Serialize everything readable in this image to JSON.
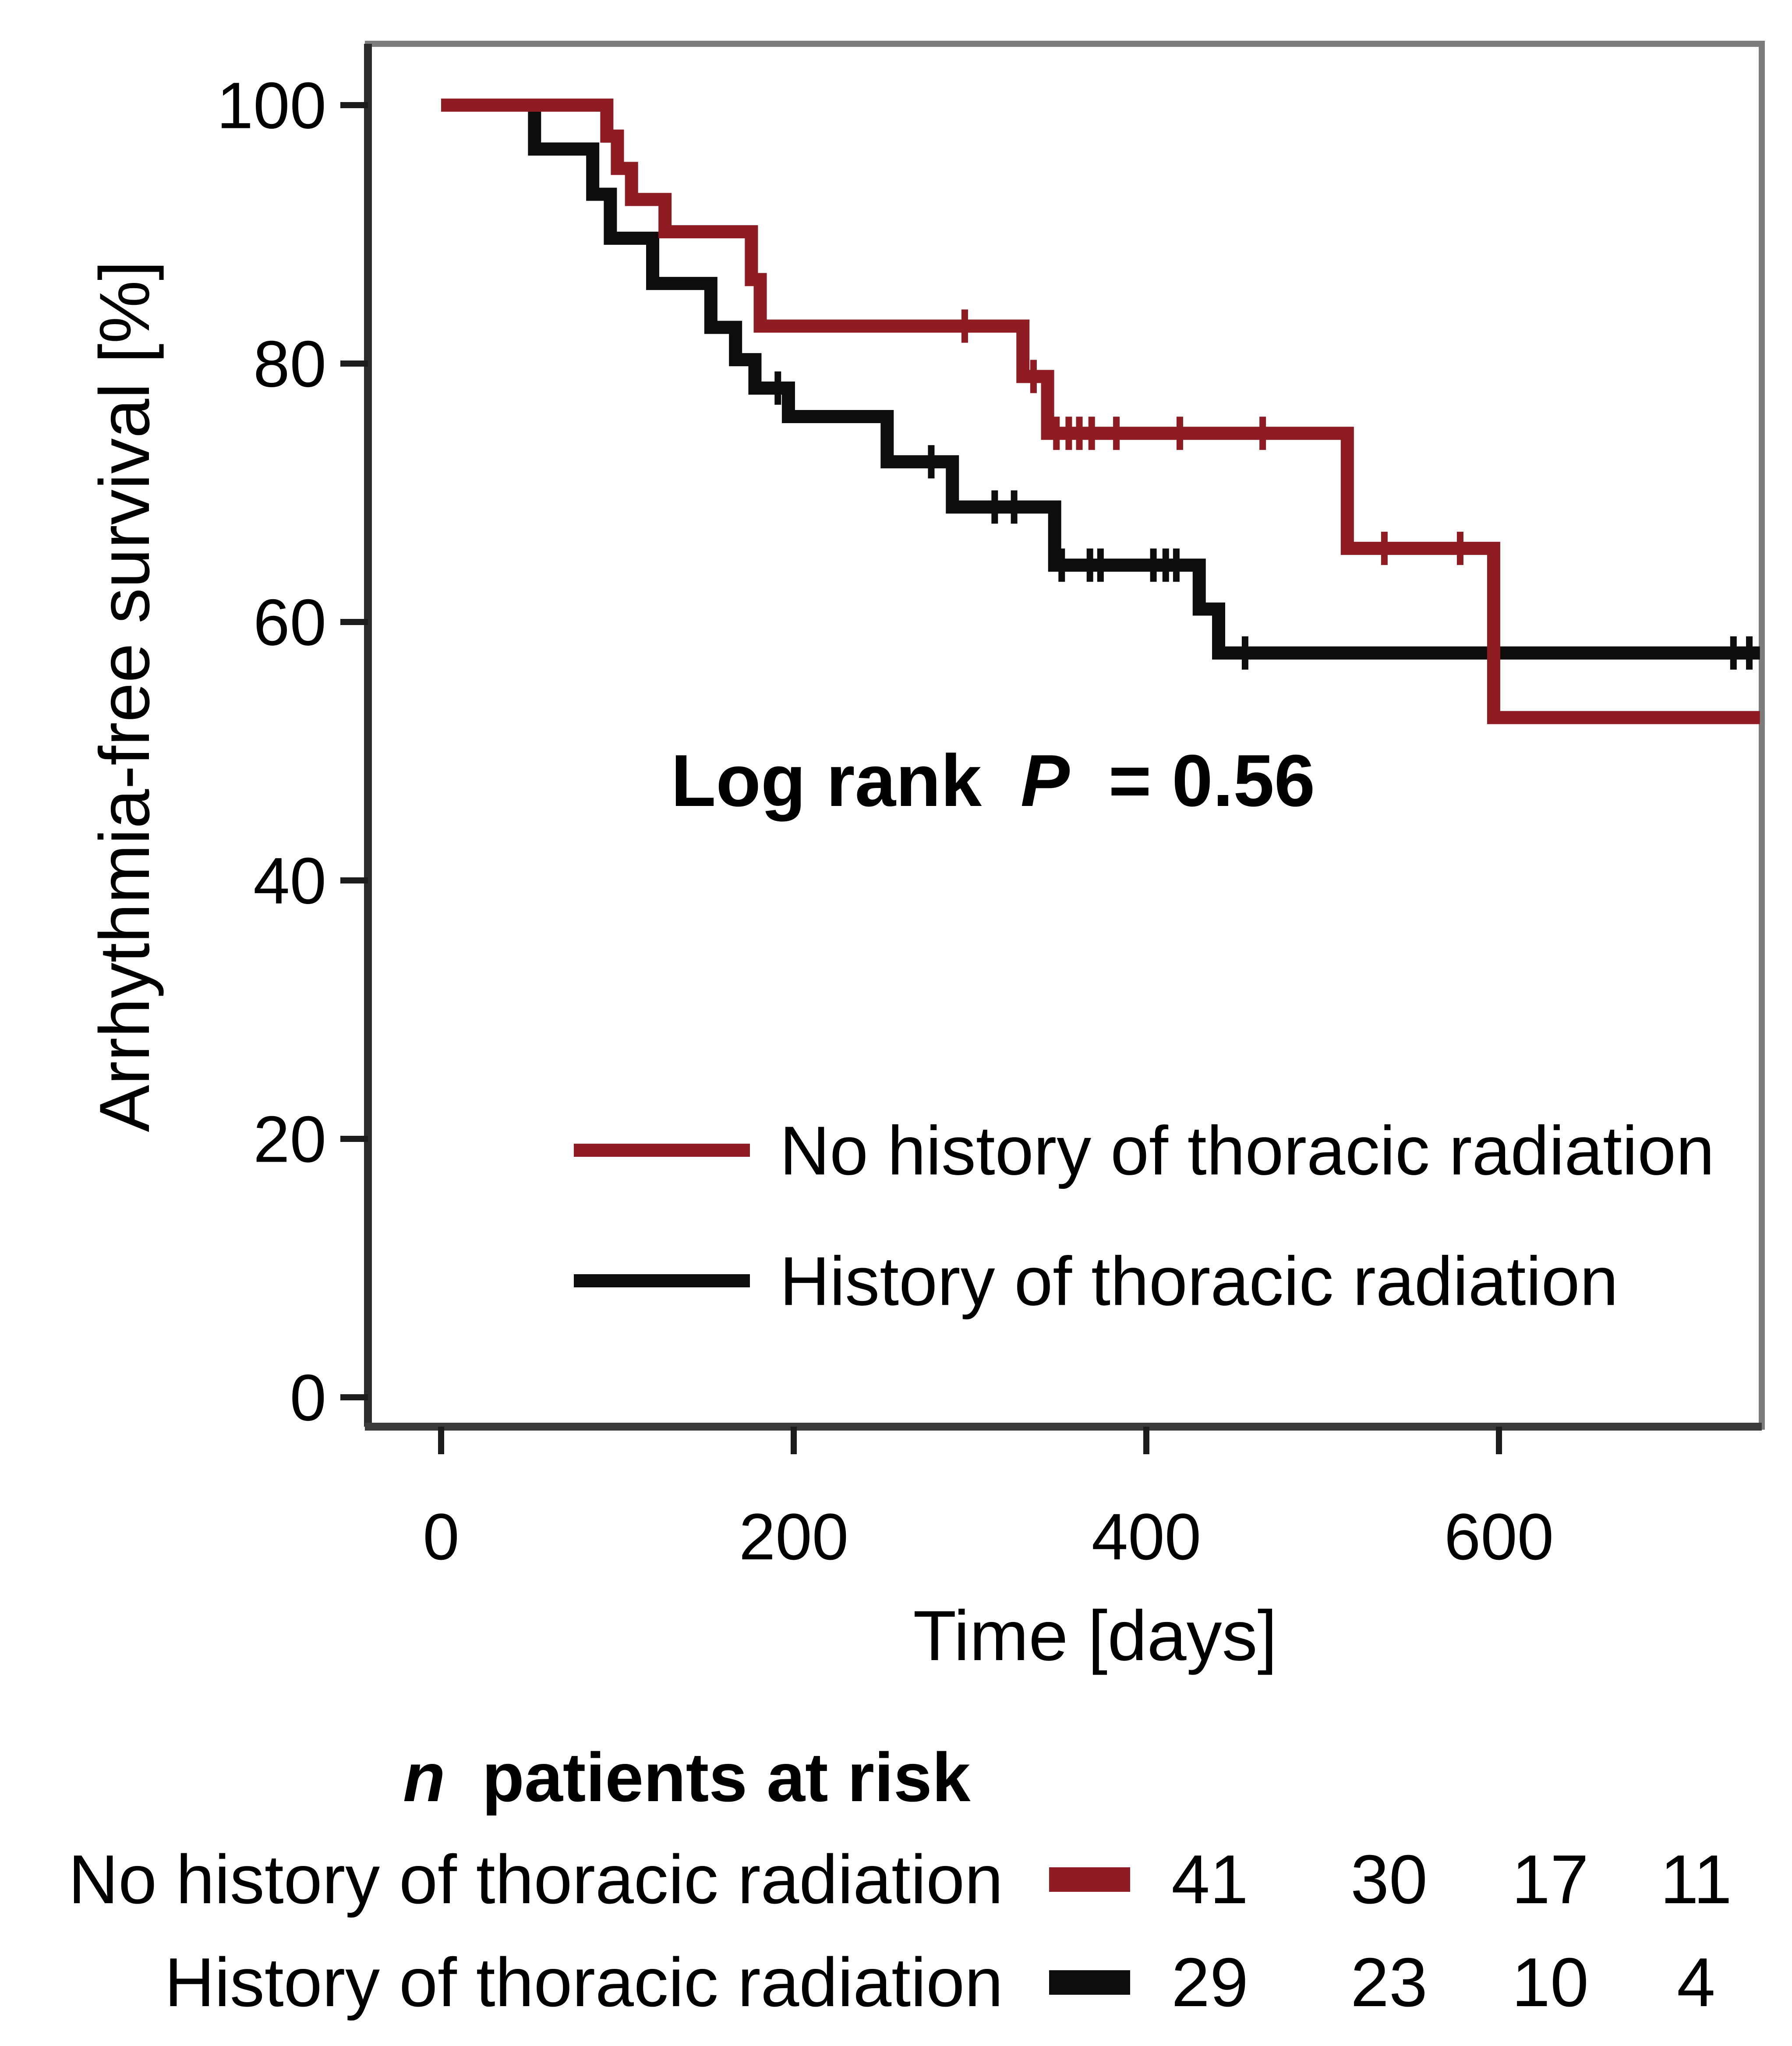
{
  "colors": {
    "series_red": "#8f1b23",
    "series_black": "#0d0d0d",
    "box_border": "#7d7d7d",
    "axis_dark": "#2b2b2b",
    "text": "#000000",
    "background": "#ffffff"
  },
  "y_axis": {
    "label": "Arrhythmia-free survival [%]",
    "tick_labels": [
      "0",
      "20",
      "40",
      "60",
      "80",
      "100"
    ]
  },
  "x_axis": {
    "label": "Time [days]",
    "tick_labels": [
      "0",
      "200",
      "400",
      "600"
    ]
  },
  "annotation": {
    "prefix": "Log rank",
    "stat": "P",
    "suffix": "= 0.56"
  },
  "legend": {
    "items": [
      {
        "label": "No history of thoracic radiation",
        "color": "#8f1b23"
      },
      {
        "label": "History of thoracic radiation",
        "color": "#0d0d0d"
      }
    ]
  },
  "at_risk": {
    "title_italic": "n",
    "title_rest": "patients at risk",
    "rows": [
      {
        "label": "No history of thoracic radiation",
        "color": "#8f1b23",
        "counts": [
          "41",
          "30",
          "17",
          "11"
        ]
      },
      {
        "label": "History of thoracic radiation",
        "color": "#0d0d0d",
        "counts": [
          "29",
          "23",
          "10",
          "4"
        ]
      }
    ]
  },
  "chart_data": {
    "type": "line",
    "subtype": "kaplan-meier-step-curves",
    "title": "Log rank P = 0.56",
    "xlabel": "Time [days]",
    "ylabel": "Arrhythmia-free survival [%]",
    "x_ticks": [
      0,
      200,
      400,
      600
    ],
    "y_ticks": [
      0,
      20,
      40,
      60,
      80,
      100
    ],
    "xlim": [
      -42,
      748
    ],
    "ylim": [
      -2.3,
      104.7
    ],
    "grid": false,
    "legend_position": "inside-lower-left",
    "series": [
      {
        "name": "No history of thoracic radiation",
        "color": "#8f1b23",
        "steps": [
          [
            0,
            100
          ],
          [
            94,
            97.6
          ],
          [
            100,
            95.1
          ],
          [
            108,
            92.7
          ],
          [
            127,
            90.2
          ],
          [
            176,
            86.5
          ],
          [
            181,
            82.9
          ],
          [
            330,
            79.0
          ],
          [
            344,
            74.6
          ],
          [
            514,
            65.7
          ],
          [
            597,
            52.6
          ]
        ],
        "end_time": 748,
        "censor_marks": [
          [
            297,
            82.9
          ],
          [
            336,
            79.0
          ],
          [
            349,
            74.6
          ],
          [
            356,
            74.6
          ],
          [
            362,
            74.6
          ],
          [
            369,
            74.6
          ],
          [
            383,
            74.6
          ],
          [
            419,
            74.6
          ],
          [
            466,
            74.6
          ],
          [
            535,
            65.7
          ],
          [
            578,
            65.7
          ]
        ]
      },
      {
        "name": "History of thoracic radiation",
        "color": "#0d0d0d",
        "steps": [
          [
            0,
            100
          ],
          [
            53,
            96.6
          ],
          [
            86,
            93.1
          ],
          [
            96,
            89.7
          ],
          [
            120,
            86.2
          ],
          [
            153,
            82.8
          ],
          [
            167,
            80.3
          ],
          [
            178,
            78.1
          ],
          [
            197,
            75.9
          ],
          [
            253,
            72.4
          ],
          [
            290,
            68.9
          ],
          [
            348,
            64.4
          ],
          [
            430,
            61.0
          ],
          [
            441,
            57.6
          ]
        ],
        "end_time": 748,
        "censor_marks": [
          [
            191,
            78.1
          ],
          [
            278,
            72.4
          ],
          [
            314,
            68.9
          ],
          [
            325,
            68.9
          ],
          [
            352,
            64.4
          ],
          [
            368,
            64.4
          ],
          [
            374,
            64.4
          ],
          [
            404,
            64.4
          ],
          [
            411,
            64.4
          ],
          [
            417,
            64.4
          ],
          [
            456,
            57.6
          ],
          [
            733,
            57.6
          ],
          [
            742,
            57.6
          ]
        ]
      }
    ],
    "at_risk_table": {
      "title": "n patients at risk",
      "rows": [
        {
          "label": "No history of thoracic radiation",
          "counts": [
            41,
            30,
            17,
            11
          ]
        },
        {
          "label": "History of thoracic radiation",
          "counts": [
            29,
            23,
            10,
            4
          ]
        }
      ]
    }
  }
}
